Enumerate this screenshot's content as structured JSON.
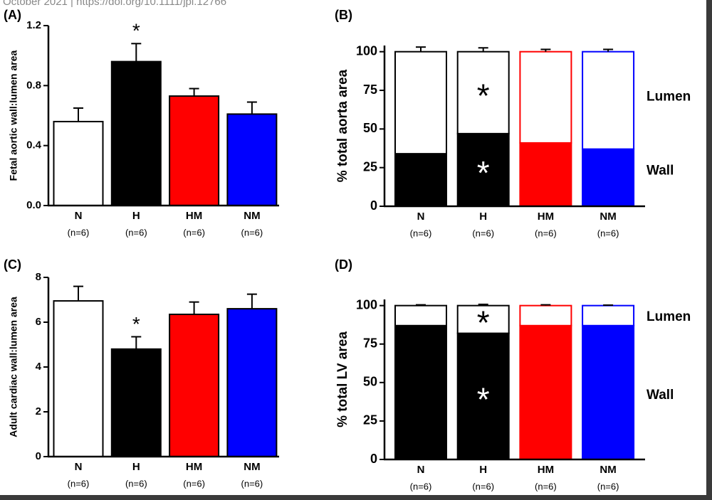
{
  "header_text": "October 2021 | https://doi.org/10.1111/jpi.12766",
  "chart_data": [
    {
      "type": "bar",
      "panel_label": "(A)",
      "ylabel": "Fetal aortic wall:lumen area",
      "categories": [
        "N",
        "H",
        "HM",
        "NM"
      ],
      "category_notes": [
        "(n=6)",
        "(n=6)",
        "(n=6)",
        "(n=6)"
      ],
      "values": [
        0.56,
        0.96,
        0.73,
        0.61
      ],
      "errors": [
        0.09,
        0.12,
        0.05,
        0.08
      ],
      "colors": [
        "#ffffff",
        "#000000",
        "#ff0000",
        "#0000ff"
      ],
      "annotations": [
        null,
        "*",
        null,
        null
      ],
      "ylim": [
        0,
        1.2
      ],
      "yticks": [
        {
          "value": 0,
          "label": "0.0"
        },
        0.4,
        0.8,
        1.2
      ]
    },
    {
      "type": "stacked_bar",
      "panel_label": "(B)",
      "ylabel": "% total aorta area",
      "categories": [
        "N",
        "H",
        "HM",
        "NM"
      ],
      "category_notes": [
        "(n=6)",
        "(n=6)",
        "(n=6)",
        "(n=6)"
      ],
      "outline_colors": [
        "#000000",
        "#000000",
        "#ff0000",
        "#0000ff"
      ],
      "series": [
        {
          "name": "Wall",
          "colors": [
            "#000000",
            "#000000",
            "#ff0000",
            "#0000ff"
          ],
          "values": [
            34,
            47,
            41,
            37
          ],
          "errors": [
            3.5,
            4,
            1.5,
            2.5
          ],
          "annotations": [
            null,
            "*",
            null,
            null
          ],
          "annotation_color": "#ffffff"
        },
        {
          "name": "Lumen",
          "colors": [
            "#ffffff",
            "#ffffff",
            "#ffffff",
            "#ffffff"
          ],
          "values": [
            66,
            53,
            59,
            63
          ],
          "errors": [
            3,
            2.5,
            1.5,
            1.5
          ],
          "annotations": [
            null,
            "*",
            null,
            null
          ],
          "annotation_color": "#000000"
        }
      ],
      "ylim": [
        0,
        104
      ],
      "yticks": [
        0,
        25,
        50,
        75,
        100
      ]
    },
    {
      "type": "bar",
      "panel_label": "(C)",
      "ylabel": "Adult cardiac wall:lumen area",
      "categories": [
        "N",
        "H",
        "HM",
        "NM"
      ],
      "category_notes": [
        "(n=6)",
        "(n=6)",
        "(n=6)",
        "(n=6)"
      ],
      "values": [
        6.95,
        4.8,
        6.35,
        6.6
      ],
      "errors": [
        0.65,
        0.55,
        0.55,
        0.65
      ],
      "colors": [
        "#ffffff",
        "#000000",
        "#ff0000",
        "#0000ff"
      ],
      "annotations": [
        null,
        "*",
        null,
        null
      ],
      "ylim": [
        0,
        8
      ],
      "yticks": [
        0,
        2,
        4,
        6,
        8
      ]
    },
    {
      "type": "stacked_bar",
      "panel_label": "(D)",
      "ylabel": "% total LV area",
      "categories": [
        "N",
        "H",
        "HM",
        "NM"
      ],
      "category_notes": [
        "(n=6)",
        "(n=6)",
        "(n=6)",
        "(n=6)"
      ],
      "outline_colors": [
        "#000000",
        "#000000",
        "#ff0000",
        "#0000ff"
      ],
      "series": [
        {
          "name": "Wall",
          "colors": [
            "#000000",
            "#000000",
            "#ff0000",
            "#0000ff"
          ],
          "values": [
            87,
            82,
            87,
            87
          ],
          "errors": [
            0.5,
            0.8,
            0.3,
            0.3
          ],
          "annotations": [
            null,
            "*",
            null,
            null
          ],
          "annotation_color": "#ffffff"
        },
        {
          "name": "Lumen",
          "colors": [
            "#ffffff",
            "#ffffff",
            "#ffffff",
            "#ffffff"
          ],
          "values": [
            13,
            18,
            13,
            13
          ],
          "errors": [
            0.5,
            0.8,
            0.5,
            0.3
          ],
          "annotations": [
            null,
            "*",
            null,
            null
          ],
          "annotation_color": "#000000"
        }
      ],
      "ylim": [
        0,
        104
      ],
      "yticks": [
        0,
        25,
        50,
        75,
        100
      ]
    }
  ]
}
